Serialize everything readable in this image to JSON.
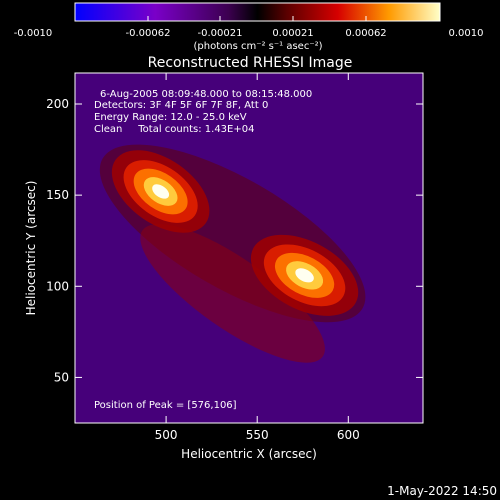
{
  "colorbar": {
    "ticks": [
      "-0.0010",
      "-0.00062",
      "-0.00021",
      "0.00021",
      "0.00062",
      "0.0010"
    ],
    "units_label": "(photons cm⁻² s⁻¹ asec⁻²)"
  },
  "timestamp": "1-May-2022 14:50",
  "chart_data": {
    "type": "heatmap",
    "title": "Reconstructed RHESSI Image",
    "xlabel": "Heliocentric X (arcsec)",
    "ylabel": "Heliocentric Y (arcsec)",
    "xlim": [
      450,
      641
    ],
    "ylim": [
      25,
      217
    ],
    "xticks": [
      500,
      550,
      600
    ],
    "yticks": [
      50,
      100,
      150,
      200
    ],
    "colorbar_range": [
      -0.001,
      0.001
    ],
    "annotations": [
      "6-Aug-2005 08:09:48.000 to 08:15:48.000",
      "Detectors: 3F 4F 5F 6F 7F 8F, Att 0",
      "Energy Range: 12.0 - 25.0 keV",
      "Clean     Total counts: 1.43E+04"
    ],
    "peak_label": "Position of Peak = [576,106]",
    "sources": [
      {
        "x": 576,
        "y": 106,
        "amplitude": 0.001
      },
      {
        "x": 497,
        "y": 152,
        "amplitude": 0.00095
      }
    ]
  }
}
